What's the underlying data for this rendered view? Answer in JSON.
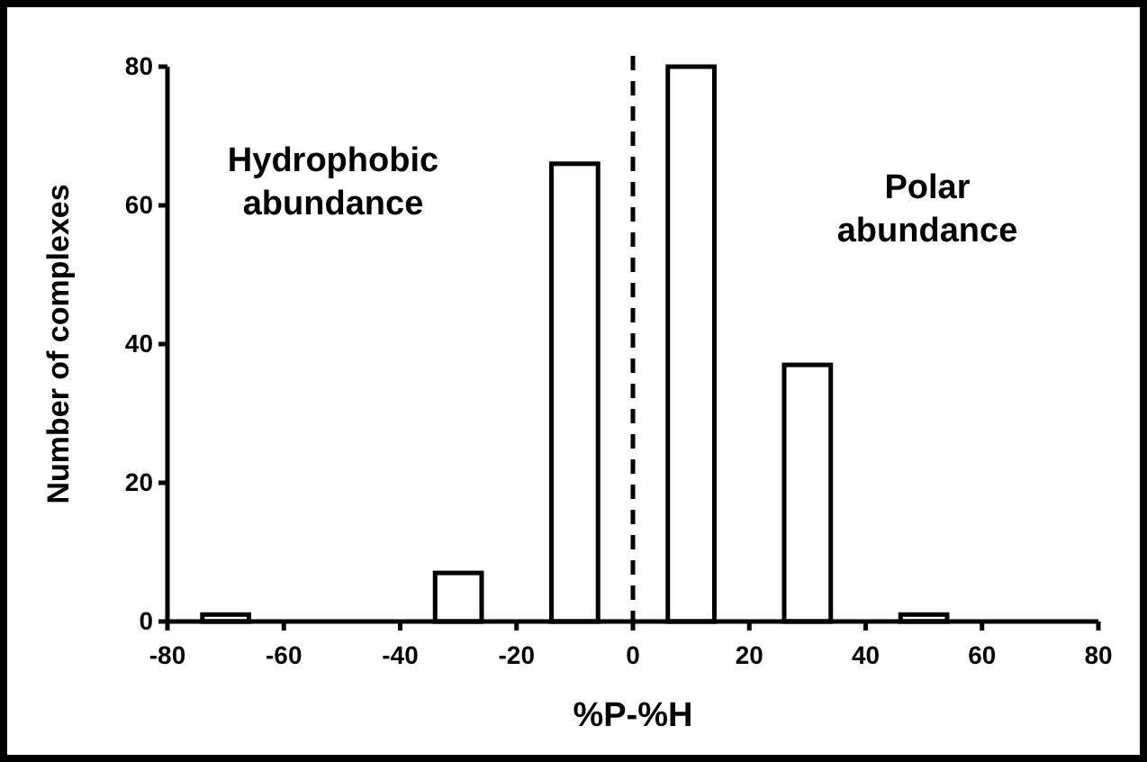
{
  "chart_data": {
    "type": "bar",
    "xlabel": "%P-%H",
    "ylabel": "Number of complexes",
    "x": [
      -70,
      -30,
      -10,
      10,
      30,
      50
    ],
    "values": [
      1,
      7,
      66,
      80,
      37,
      1
    ],
    "color": "#ffffff",
    "xlim": [
      -80,
      80
    ],
    "xticks": [
      -80,
      -60,
      -40,
      -20,
      0,
      20,
      40,
      60,
      80
    ],
    "ylim": [
      0,
      80
    ],
    "yticks": [
      0,
      20,
      40,
      60,
      80
    ],
    "grid": false,
    "ref_lines": [
      {
        "axis": "x",
        "value": 0,
        "line_style": "dashed",
        "color": "#000000"
      }
    ],
    "annotations": [
      "Hydrophobic abundance",
      "Polar abundance"
    ]
  }
}
